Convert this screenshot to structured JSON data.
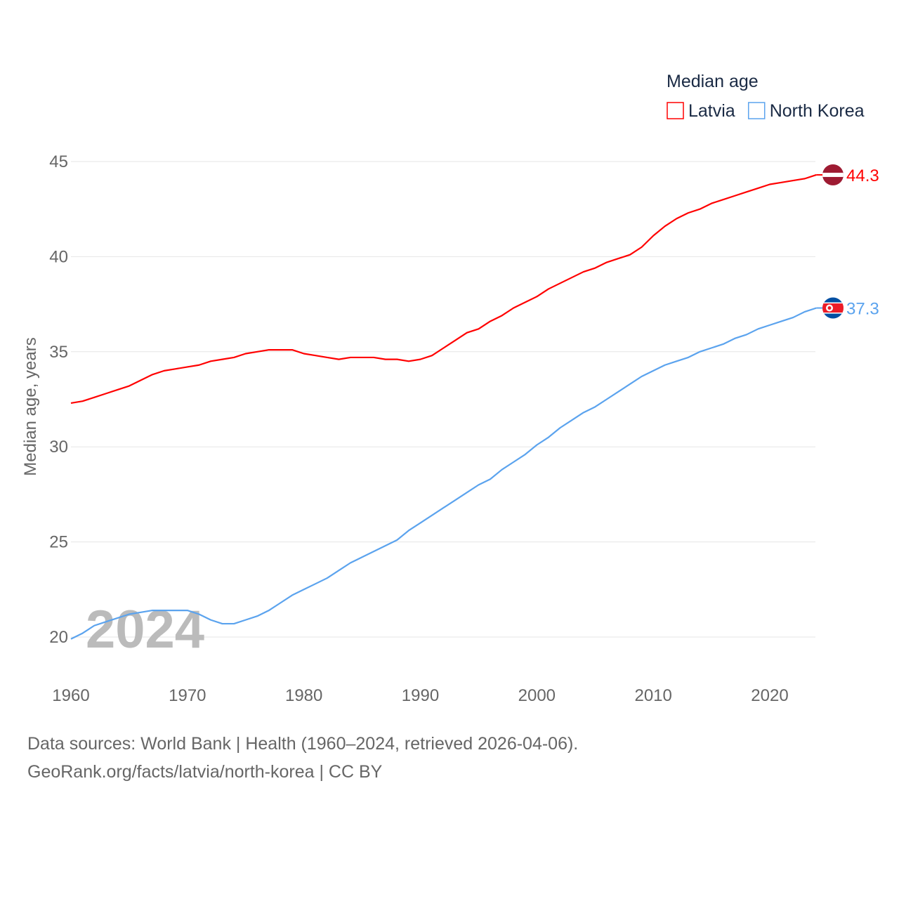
{
  "chart_data": {
    "type": "line",
    "title": "",
    "legend_title": "Median age",
    "legend_placement": "top-right",
    "xlabel": "",
    "ylabel": "Median age, years",
    "xlim": [
      1960,
      2024
    ],
    "ylim": [
      20,
      45
    ],
    "xticks": [
      "1960",
      "1970",
      "1980",
      "1990",
      "2000",
      "2010",
      "2020"
    ],
    "yticks": [
      "20",
      "25",
      "30",
      "35",
      "40",
      "45"
    ],
    "grid": true,
    "year_watermark": "2024",
    "x": [
      1960,
      1961,
      1962,
      1963,
      1964,
      1965,
      1966,
      1967,
      1968,
      1969,
      1970,
      1971,
      1972,
      1973,
      1974,
      1975,
      1976,
      1977,
      1978,
      1979,
      1980,
      1981,
      1982,
      1983,
      1984,
      1985,
      1986,
      1987,
      1988,
      1989,
      1990,
      1991,
      1992,
      1993,
      1994,
      1995,
      1996,
      1997,
      1998,
      1999,
      2000,
      2001,
      2002,
      2003,
      2004,
      2005,
      2006,
      2007,
      2008,
      2009,
      2010,
      2011,
      2012,
      2013,
      2014,
      2015,
      2016,
      2017,
      2018,
      2019,
      2020,
      2021,
      2022,
      2023,
      2024
    ],
    "series": [
      {
        "name": "Latvia",
        "color": "#ff0000",
        "end_label": "44.3",
        "values": [
          32.3,
          32.4,
          32.6,
          32.8,
          33.0,
          33.2,
          33.5,
          33.8,
          34.0,
          34.1,
          34.2,
          34.3,
          34.5,
          34.6,
          34.7,
          34.9,
          35.0,
          35.1,
          35.1,
          35.1,
          34.9,
          34.8,
          34.7,
          34.6,
          34.7,
          34.7,
          34.7,
          34.6,
          34.6,
          34.5,
          34.6,
          34.8,
          35.2,
          35.6,
          36.0,
          36.2,
          36.6,
          36.9,
          37.3,
          37.6,
          37.9,
          38.3,
          38.6,
          38.9,
          39.2,
          39.4,
          39.7,
          39.9,
          40.1,
          40.5,
          41.1,
          41.6,
          42.0,
          42.3,
          42.5,
          42.8,
          43.0,
          43.2,
          43.4,
          43.6,
          43.8,
          43.9,
          44.0,
          44.1,
          44.3
        ]
      },
      {
        "name": "North Korea",
        "color": "#5ba3ee",
        "end_label": "37.3",
        "values": [
          19.9,
          20.2,
          20.6,
          20.8,
          21.0,
          21.2,
          21.3,
          21.4,
          21.4,
          21.4,
          21.4,
          21.2,
          20.9,
          20.7,
          20.7,
          20.9,
          21.1,
          21.4,
          21.8,
          22.2,
          22.5,
          22.8,
          23.1,
          23.5,
          23.9,
          24.2,
          24.5,
          24.8,
          25.1,
          25.6,
          26.0,
          26.4,
          26.8,
          27.2,
          27.6,
          28.0,
          28.3,
          28.8,
          29.2,
          29.6,
          30.1,
          30.5,
          31.0,
          31.4,
          31.8,
          32.1,
          32.5,
          32.9,
          33.3,
          33.7,
          34.0,
          34.3,
          34.5,
          34.7,
          35.0,
          35.2,
          35.4,
          35.7,
          35.9,
          36.2,
          36.4,
          36.6,
          36.8,
          37.1,
          37.3
        ]
      }
    ]
  },
  "footer": {
    "line1": "Data sources: World Bank | Health (1960–2024, retrieved 2026-04-06).",
    "line2": "GeoRank.org/facts/latvia/north-korea | CC BY"
  }
}
